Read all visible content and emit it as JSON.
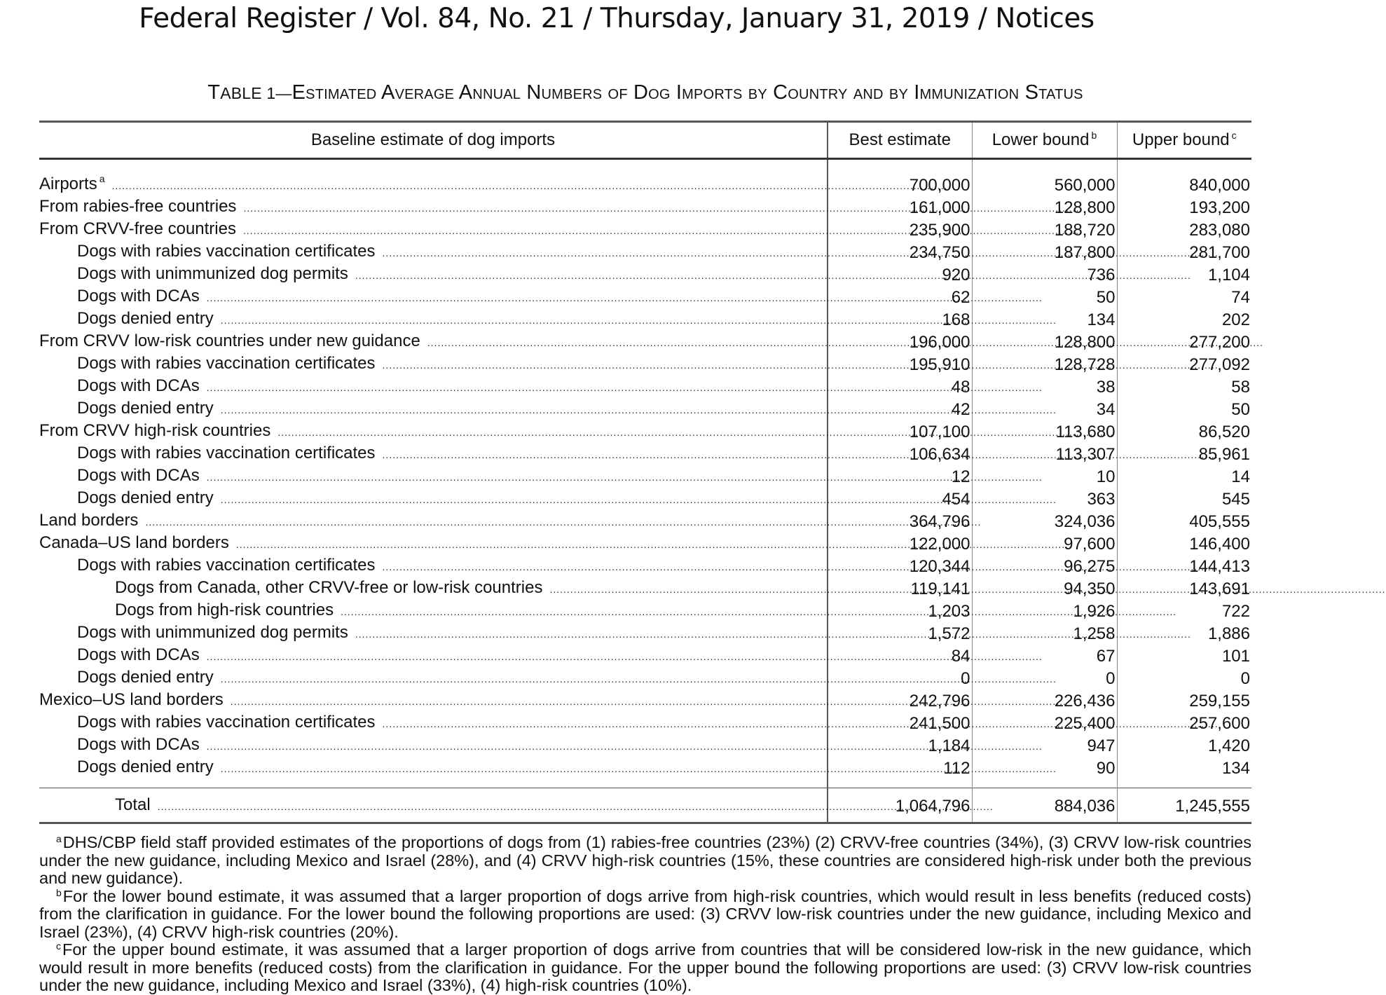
{
  "header": "Federal Register / Vol. 84, No. 21 / Thursday, January 31, 2019 / Notices",
  "table_title": {
    "prefix": "T",
    "rest": "ABLE 1—",
    "text": "Table 1—Estimated Average Annual Numbers of Dog Imports by Country and by Immunization Status"
  },
  "columns": [
    {
      "label": "Baseline estimate of dog imports",
      "sup": ""
    },
    {
      "label": "Best estimate",
      "sup": ""
    },
    {
      "label": "Lower bound",
      "sup": "b"
    },
    {
      "label": "Upper bound",
      "sup": "c"
    }
  ],
  "rows": [
    {
      "label": "Airports",
      "sup": "a",
      "level": 0,
      "best": "700,000",
      "lower": "560,000",
      "upper": "840,000"
    },
    {
      "label": "From rabies-free countries",
      "sup": "",
      "level": 0,
      "best": "161,000",
      "lower": "128,800",
      "upper": "193,200"
    },
    {
      "label": "From CRVV-free countries",
      "sup": "",
      "level": 0,
      "best": "235,900",
      "lower": "188,720",
      "upper": "283,080"
    },
    {
      "label": "Dogs with rabies vaccination certificates",
      "sup": "",
      "level": 1,
      "best": "234,750",
      "lower": "187,800",
      "upper": "281,700"
    },
    {
      "label": "Dogs with unimmunized dog permits",
      "sup": "",
      "level": 1,
      "best": "920",
      "lower": "736",
      "upper": "1,104"
    },
    {
      "label": "Dogs with DCAs",
      "sup": "",
      "level": 1,
      "best": "62",
      "lower": "50",
      "upper": "74"
    },
    {
      "label": "Dogs denied entry",
      "sup": "",
      "level": 1,
      "best": "168",
      "lower": "134",
      "upper": "202"
    },
    {
      "label": "From CRVV low-risk countries under new guidance",
      "sup": "",
      "level": 0,
      "best": "196,000",
      "lower": "128,800",
      "upper": "277,200"
    },
    {
      "label": "Dogs with rabies vaccination certificates",
      "sup": "",
      "level": 1,
      "best": "195,910",
      "lower": "128,728",
      "upper": "277,092"
    },
    {
      "label": "Dogs with DCAs",
      "sup": "",
      "level": 1,
      "best": "48",
      "lower": "38",
      "upper": "58"
    },
    {
      "label": "Dogs denied entry",
      "sup": "",
      "level": 1,
      "best": "42",
      "lower": "34",
      "upper": "50"
    },
    {
      "label": "From CRVV high-risk countries",
      "sup": "",
      "level": 0,
      "best": "107,100",
      "lower": "113,680",
      "upper": "86,520"
    },
    {
      "label": "Dogs with rabies vaccination certificates",
      "sup": "",
      "level": 1,
      "best": "106,634",
      "lower": "113,307",
      "upper": "85,961"
    },
    {
      "label": "Dogs with DCAs",
      "sup": "",
      "level": 1,
      "best": "12",
      "lower": "10",
      "upper": "14"
    },
    {
      "label": "Dogs denied entry",
      "sup": "",
      "level": 1,
      "best": "454",
      "lower": "363",
      "upper": "545"
    },
    {
      "label": "Land borders",
      "sup": "",
      "level": 0,
      "best": "364,796",
      "lower": "324,036",
      "upper": "405,555"
    },
    {
      "label": "Canada–US land borders",
      "sup": "",
      "level": 0,
      "best": "122,000",
      "lower": "97,600",
      "upper": "146,400"
    },
    {
      "label": "Dogs with rabies vaccination certificates",
      "sup": "",
      "level": 1,
      "best": "120,344",
      "lower": "96,275",
      "upper": "144,413"
    },
    {
      "label": "Dogs from Canada, other CRVV-free or low-risk countries",
      "sup": "",
      "level": 2,
      "best": "119,141",
      "lower": "94,350",
      "upper": "143,691"
    },
    {
      "label": "Dogs from high-risk countries",
      "sup": "",
      "level": 2,
      "best": "1,203",
      "lower": "1,926",
      "upper": "722"
    },
    {
      "label": "Dogs with unimmunized dog permits",
      "sup": "",
      "level": 1,
      "best": "1,572",
      "lower": "1,258",
      "upper": "1,886"
    },
    {
      "label": "Dogs with DCAs",
      "sup": "",
      "level": 1,
      "best": "84",
      "lower": "67",
      "upper": "101"
    },
    {
      "label": "Dogs denied entry",
      "sup": "",
      "level": 1,
      "best": "0",
      "lower": "0",
      "upper": "0"
    },
    {
      "label": "Mexico–US land borders",
      "sup": "",
      "level": 0,
      "best": "242,796",
      "lower": "226,436",
      "upper": "259,155"
    },
    {
      "label": "Dogs with rabies vaccination certificates",
      "sup": "",
      "level": 1,
      "best": "241,500",
      "lower": "225,400",
      "upper": "257,600"
    },
    {
      "label": "Dogs with DCAs",
      "sup": "",
      "level": 1,
      "best": "1,184",
      "lower": "947",
      "upper": "1,420"
    },
    {
      "label": "Dogs denied entry",
      "sup": "",
      "level": 1,
      "best": "112",
      "lower": "90",
      "upper": "134"
    }
  ],
  "total": {
    "label": "Total",
    "best": "1,064,796",
    "lower": "884,036",
    "upper": "1,245,555"
  },
  "footnotes": [
    {
      "mark": "a",
      "text": "DHS/CBP field staff provided estimates of the proportions of dogs from (1) rabies-free countries (23%) (2) CRVV-free countries (34%), (3) CRVV low-risk countries under the new guidance, including Mexico and Israel (28%), and (4) CRVV high-risk countries (15%, these countries are considered high-risk under both the previous and new guidance)."
    },
    {
      "mark": "b",
      "text": "For the lower bound estimate, it was assumed that a larger proportion of dogs arrive from high-risk countries, which would result in less benefits (reduced costs) from the clarification in guidance. For the lower bound the following proportions are used: (3) CRVV low-risk countries under the new guidance, including Mexico and Israel (23%), (4) CRVV high-risk countries (20%)."
    },
    {
      "mark": "c",
      "text": "For the upper bound estimate, it was assumed that a larger proportion of dogs arrive from countries that will be considered low-risk in the new guidance, which would result in more benefits (reduced costs) from the clarification in guidance. For the upper bound the following proportions are used: (3) CRVV low-risk countries under the new guidance, including Mexico and Israel (33%), (4) high-risk countries (10%)."
    }
  ]
}
